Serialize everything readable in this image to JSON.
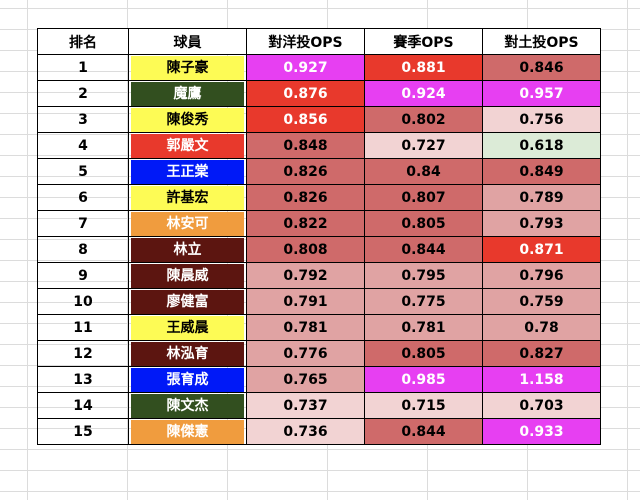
{
  "headers": {
    "rank": "排名",
    "player": "球員",
    "vs_yang": "對洋投OPS",
    "season": "賽季OPS",
    "vs_local": "對土投OPS"
  },
  "colors": {
    "magenta": "#e73ff2",
    "red": "#e8392c",
    "dark_rose": "#cf6a6a",
    "mid_rose": "#e0a3a3",
    "light_rose": "#f2d3d3",
    "light_green": "#dcebd7",
    "yellow": "#fdfb55",
    "dark_green": "#324f1f",
    "red_team": "#e8392c",
    "blue": "#0019f7",
    "orange": "#f09c3e",
    "maroon": "#5c1510"
  },
  "rows": [
    {
      "rank": "1",
      "name": "陳子豪",
      "name_bg": "#fdfb55",
      "name_fg": "#000000",
      "vs_yang": "0.927",
      "vs_yang_bg": "#e73ff2",
      "vs_yang_fg": "#ffffff",
      "season": "0.881",
      "season_bg": "#e8392c",
      "season_fg": "#ffffff",
      "vs_local": "0.846",
      "vs_local_bg": "#cf6a6a",
      "vs_local_fg": "#000000"
    },
    {
      "rank": "2",
      "name": "魔鷹",
      "name_bg": "#324f1f",
      "name_fg": "#ffffff",
      "vs_yang": "0.876",
      "vs_yang_bg": "#e8392c",
      "vs_yang_fg": "#ffffff",
      "season": "0.924",
      "season_bg": "#e73ff2",
      "season_fg": "#ffffff",
      "vs_local": "0.957",
      "vs_local_bg": "#e73ff2",
      "vs_local_fg": "#ffffff"
    },
    {
      "rank": "3",
      "name": "陳俊秀",
      "name_bg": "#fdfb55",
      "name_fg": "#000000",
      "vs_yang": "0.856",
      "vs_yang_bg": "#e8392c",
      "vs_yang_fg": "#ffffff",
      "season": "0.802",
      "season_bg": "#cf6a6a",
      "season_fg": "#000000",
      "vs_local": "0.756",
      "vs_local_bg": "#f2d3d3",
      "vs_local_fg": "#000000"
    },
    {
      "rank": "4",
      "name": "郭嚴文",
      "name_bg": "#e8392c",
      "name_fg": "#ffffff",
      "vs_yang": "0.848",
      "vs_yang_bg": "#cf6a6a",
      "vs_yang_fg": "#000000",
      "season": "0.727",
      "season_bg": "#f2d3d3",
      "season_fg": "#000000",
      "vs_local": "0.618",
      "vs_local_bg": "#dcebd7",
      "vs_local_fg": "#000000"
    },
    {
      "rank": "5",
      "name": "王正棠",
      "name_bg": "#0019f7",
      "name_fg": "#ffffff",
      "vs_yang": "0.826",
      "vs_yang_bg": "#cf6a6a",
      "vs_yang_fg": "#000000",
      "season": "0.84",
      "season_bg": "#cf6a6a",
      "season_fg": "#000000",
      "vs_local": "0.849",
      "vs_local_bg": "#cf6a6a",
      "vs_local_fg": "#000000"
    },
    {
      "rank": "6",
      "name": "許基宏",
      "name_bg": "#fdfb55",
      "name_fg": "#000000",
      "vs_yang": "0.826",
      "vs_yang_bg": "#cf6a6a",
      "vs_yang_fg": "#000000",
      "season": "0.807",
      "season_bg": "#cf6a6a",
      "season_fg": "#000000",
      "vs_local": "0.789",
      "vs_local_bg": "#e0a3a3",
      "vs_local_fg": "#000000"
    },
    {
      "rank": "7",
      "name": "林安可",
      "name_bg": "#f09c3e",
      "name_fg": "#ffffff",
      "vs_yang": "0.822",
      "vs_yang_bg": "#cf6a6a",
      "vs_yang_fg": "#000000",
      "season": "0.805",
      "season_bg": "#cf6a6a",
      "season_fg": "#000000",
      "vs_local": "0.793",
      "vs_local_bg": "#e0a3a3",
      "vs_local_fg": "#000000"
    },
    {
      "rank": "8",
      "name": "林立",
      "name_bg": "#5c1510",
      "name_fg": "#ffffff",
      "vs_yang": "0.808",
      "vs_yang_bg": "#cf6a6a",
      "vs_yang_fg": "#000000",
      "season": "0.844",
      "season_bg": "#cf6a6a",
      "season_fg": "#000000",
      "vs_local": "0.871",
      "vs_local_bg": "#e8392c",
      "vs_local_fg": "#ffffff"
    },
    {
      "rank": "9",
      "name": "陳晨威",
      "name_bg": "#5c1510",
      "name_fg": "#ffffff",
      "vs_yang": "0.792",
      "vs_yang_bg": "#e0a3a3",
      "vs_yang_fg": "#000000",
      "season": "0.795",
      "season_bg": "#e0a3a3",
      "season_fg": "#000000",
      "vs_local": "0.796",
      "vs_local_bg": "#e0a3a3",
      "vs_local_fg": "#000000"
    },
    {
      "rank": "10",
      "name": "廖健富",
      "name_bg": "#5c1510",
      "name_fg": "#ffffff",
      "vs_yang": "0.791",
      "vs_yang_bg": "#e0a3a3",
      "vs_yang_fg": "#000000",
      "season": "0.775",
      "season_bg": "#e0a3a3",
      "season_fg": "#000000",
      "vs_local": "0.759",
      "vs_local_bg": "#e0a3a3",
      "vs_local_fg": "#000000"
    },
    {
      "rank": "11",
      "name": "王威晨",
      "name_bg": "#fdfb55",
      "name_fg": "#000000",
      "vs_yang": "0.781",
      "vs_yang_bg": "#e0a3a3",
      "vs_yang_fg": "#000000",
      "season": "0.781",
      "season_bg": "#e0a3a3",
      "season_fg": "#000000",
      "vs_local": "0.78",
      "vs_local_bg": "#e0a3a3",
      "vs_local_fg": "#000000"
    },
    {
      "rank": "12",
      "name": "林泓育",
      "name_bg": "#5c1510",
      "name_fg": "#ffffff",
      "vs_yang": "0.776",
      "vs_yang_bg": "#e0a3a3",
      "vs_yang_fg": "#000000",
      "season": "0.805",
      "season_bg": "#cf6a6a",
      "season_fg": "#000000",
      "vs_local": "0.827",
      "vs_local_bg": "#cf6a6a",
      "vs_local_fg": "#000000"
    },
    {
      "rank": "13",
      "name": "張育成",
      "name_bg": "#0019f7",
      "name_fg": "#ffffff",
      "vs_yang": "0.765",
      "vs_yang_bg": "#e0a3a3",
      "vs_yang_fg": "#000000",
      "season": "0.985",
      "season_bg": "#e73ff2",
      "season_fg": "#ffffff",
      "vs_local": "1.158",
      "vs_local_bg": "#e73ff2",
      "vs_local_fg": "#ffffff"
    },
    {
      "rank": "14",
      "name": "陳文杰",
      "name_bg": "#324f1f",
      "name_fg": "#ffffff",
      "vs_yang": "0.737",
      "vs_yang_bg": "#f2d3d3",
      "vs_yang_fg": "#000000",
      "season": "0.715",
      "season_bg": "#f2d3d3",
      "season_fg": "#000000",
      "vs_local": "0.703",
      "vs_local_bg": "#f2d3d3",
      "vs_local_fg": "#000000"
    },
    {
      "rank": "15",
      "name": "陳傑憲",
      "name_bg": "#f09c3e",
      "name_fg": "#ffffff",
      "vs_yang": "0.736",
      "vs_yang_bg": "#f2d3d3",
      "vs_yang_fg": "#000000",
      "season": "0.844",
      "season_bg": "#cf6a6a",
      "season_fg": "#000000",
      "vs_local": "0.933",
      "vs_local_bg": "#e73ff2",
      "vs_local_fg": "#ffffff"
    }
  ]
}
